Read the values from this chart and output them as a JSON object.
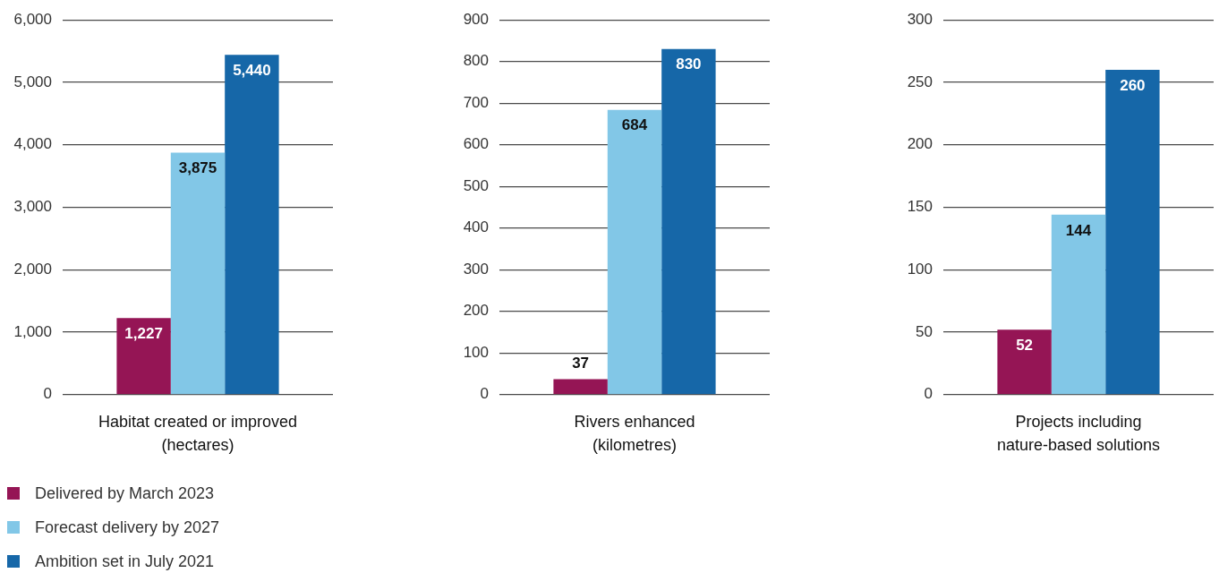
{
  "chart_data": [
    {
      "type": "bar",
      "xlabel": "Habitat created or improved\n(hectares)",
      "categories": [
        null
      ],
      "series": [
        {
          "name": "Delivered by March 2023",
          "color": "#951555",
          "values": [
            1227
          ],
          "value_labels": [
            "1,227"
          ]
        },
        {
          "name": "Forecast delivery by 2027",
          "color": "#82c7e7",
          "values": [
            3875
          ],
          "value_labels": [
            "3,875"
          ]
        },
        {
          "name": "Ambition set in July 2021",
          "color": "#1667a8",
          "values": [
            5440
          ],
          "value_labels": [
            "5,440"
          ]
        }
      ],
      "ylim": [
        0,
        6000
      ],
      "yticks": [
        0,
        {
          "value": 1000,
          "label": "1,000"
        },
        {
          "value": 2000,
          "label": "2,000"
        },
        {
          "value": 3000,
          "label": "3,000"
        },
        {
          "value": 4000,
          "label": "4,000"
        },
        {
          "value": 5000,
          "label": "5,000"
        },
        {
          "value": 6000,
          "label": "6,000"
        }
      ],
      "grid": "y",
      "legend": "bottom left"
    },
    {
      "type": "bar",
      "xlabel": "Rivers enhanced\n(kilometres)",
      "categories": [
        null
      ],
      "series": [
        {
          "color": "#951555",
          "values": [
            37
          ]
        },
        {
          "color": "#82c7e7",
          "values": [
            684
          ]
        },
        {
          "color": "#1667a8",
          "values": [
            830
          ]
        }
      ],
      "ylim": [
        0,
        900
      ],
      "yticks": [
        0,
        100,
        200,
        300,
        400,
        500,
        600,
        700,
        800,
        900
      ],
      "grid": "y",
      "data_labels": true
    },
    {
      "type": "bar",
      "xlabel": "Projects including\nnature-based solutions",
      "categories": [
        null
      ],
      "series": [
        {
          "color": "#951555",
          "values": [
            52
          ]
        },
        {
          "color": "#82c7e7",
          "values": [
            144
          ]
        },
        {
          "color": "#1667a8",
          "values": [
            260
          ]
        }
      ],
      "ylim": [
        0,
        300
      ],
      "yticks": [
        0,
        50,
        100,
        150,
        200,
        250,
        300
      ],
      "grid": "y",
      "data_labels": true
    }
  ]
}
